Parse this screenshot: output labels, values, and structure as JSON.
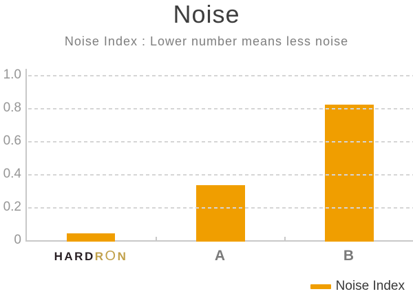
{
  "title": "Noise",
  "subtitle": "Noise Index : Lower number means less noise",
  "chart_data": {
    "type": "bar",
    "title": "Noise",
    "subtitle": "Noise Index : Lower number means less noise",
    "categories": [
      "HARDRON",
      "A",
      "B"
    ],
    "series": [
      {
        "name": "Noise Index",
        "values": [
          0.05,
          0.34,
          0.83
        ]
      }
    ],
    "xlabel": "",
    "ylabel": "",
    "ylim": [
      0,
      1.0
    ],
    "yticks": [
      0,
      0.2,
      0.4,
      0.6,
      0.8,
      1.0
    ],
    "ytick_labels": [
      "0",
      "0.2",
      "0.4",
      "0.6",
      "0.8",
      "1.0"
    ],
    "grid": "horizontal-dashed",
    "legend_position": "bottom-right",
    "bar_color": "#F09E00"
  },
  "brand": {
    "dark_part": "HARD",
    "gold_r": "R",
    "gold_o": "O",
    "gold_n": "N"
  },
  "legend": {
    "label": "Noise Index"
  },
  "colors": {
    "bar": "#F09E00",
    "brand_dark": "#271E22",
    "brand_gold": "#C1A14B",
    "axis": "#C8C8C8",
    "grid": "#D5D5D5",
    "title_text": "#3E3E3E",
    "subtitle_text": "#7E7E7E",
    "tick_text": "#969696"
  }
}
